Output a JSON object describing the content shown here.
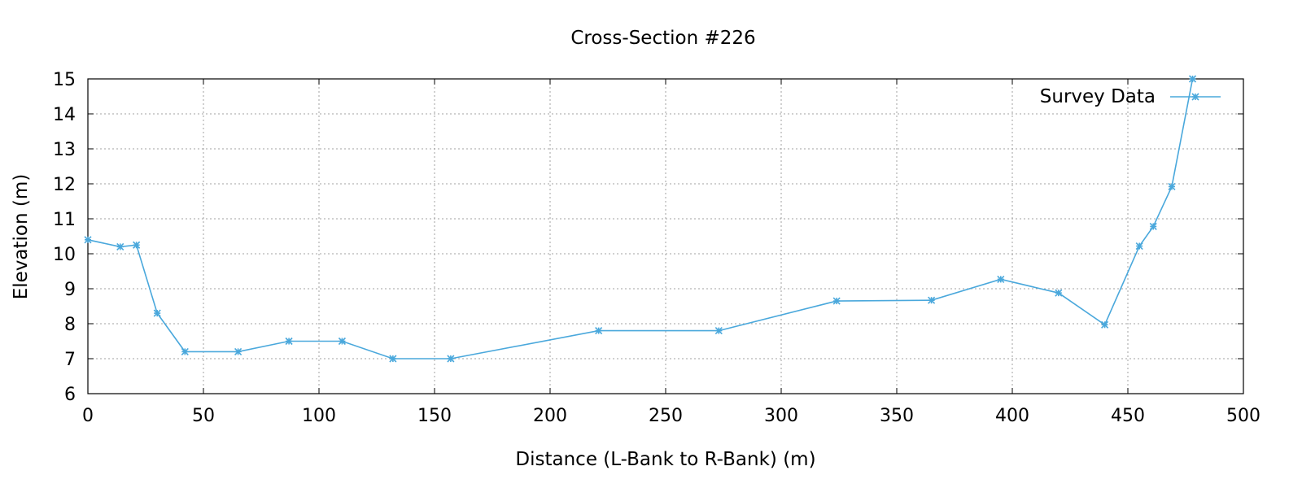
{
  "chart_data": {
    "type": "line",
    "title": "Cross-Section #226",
    "xlabel": "Distance (L-Bank to R-Bank) (m)",
    "ylabel": "Elevation (m)",
    "xlim": [
      0,
      500
    ],
    "ylim": [
      6,
      15
    ],
    "xticks": [
      "0",
      "50",
      "100",
      "150",
      "200",
      "250",
      "300",
      "350",
      "400",
      "450",
      "500"
    ],
    "yticks": [
      "6",
      "7",
      "8",
      "9",
      "10",
      "11",
      "12",
      "13",
      "14",
      "15"
    ],
    "grid": true,
    "legend_position": "top-right",
    "series": [
      {
        "name": "Survey Data",
        "color": "#4aa8dc",
        "marker": "star",
        "x": [
          0,
          14,
          21,
          30,
          42,
          65,
          87,
          110,
          132,
          157,
          221,
          273,
          324,
          365,
          395,
          420,
          440,
          455,
          461,
          469,
          478
        ],
        "y": [
          10.4,
          10.2,
          10.25,
          8.3,
          7.2,
          7.2,
          7.5,
          7.5,
          7.0,
          7.0,
          7.8,
          7.8,
          8.65,
          8.67,
          9.27,
          8.88,
          7.97,
          10.22,
          10.78,
          11.92,
          15.0
        ]
      }
    ]
  }
}
